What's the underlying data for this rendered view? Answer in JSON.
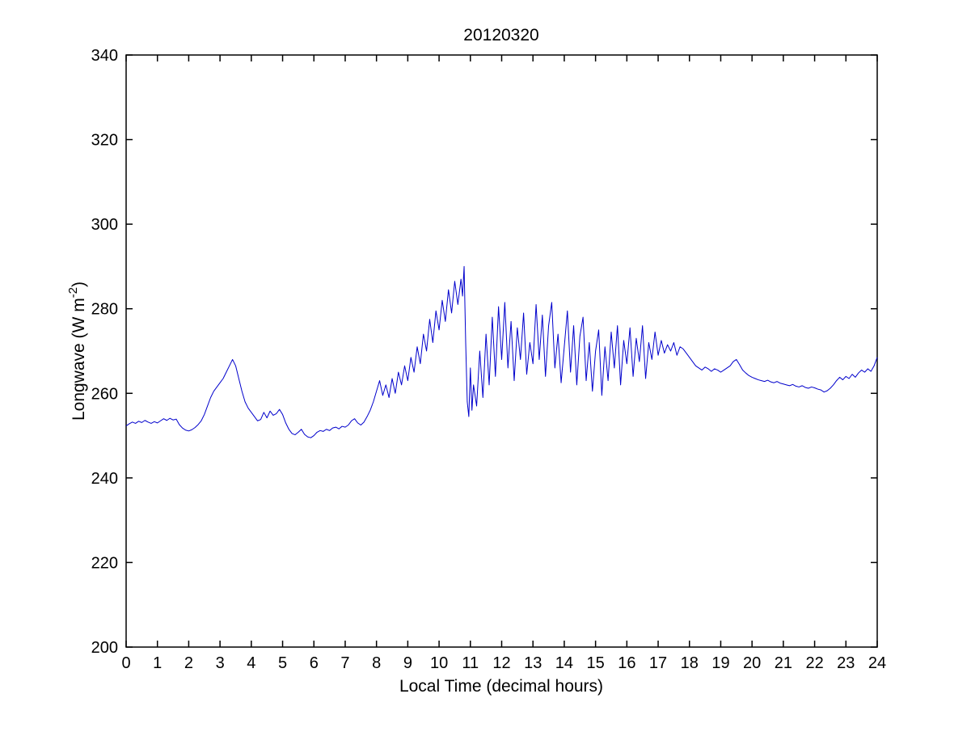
{
  "figure": {
    "title": "20120320",
    "xlabel": "Local Time (decimal hours)",
    "ylabel_prefix": "Longwave (W m",
    "ylabel_superscript": "-2",
    "ylabel_suffix": ")",
    "line_color": "#0000CC",
    "axis_color": "#000000",
    "background": "#FFFFFF"
  },
  "chart_data": {
    "type": "line",
    "title": "20120320",
    "xlabel": "Local Time (decimal hours)",
    "ylabel": "Longwave (W m^-2)",
    "xlim": [
      0,
      24
    ],
    "ylim": [
      200,
      340
    ],
    "xticks": [
      0,
      1,
      2,
      3,
      4,
      5,
      6,
      7,
      8,
      9,
      10,
      11,
      12,
      13,
      14,
      15,
      16,
      17,
      18,
      19,
      20,
      21,
      22,
      23,
      24
    ],
    "yticks": [
      200,
      220,
      240,
      260,
      280,
      300,
      320,
      340
    ],
    "grid": false,
    "legend": null,
    "series": [
      {
        "name": "Longwave",
        "color": "#0000CC",
        "points": [
          [
            0.0,
            252.3
          ],
          [
            0.1,
            252.8
          ],
          [
            0.2,
            253.2
          ],
          [
            0.3,
            252.9
          ],
          [
            0.4,
            253.4
          ],
          [
            0.5,
            253.1
          ],
          [
            0.6,
            253.6
          ],
          [
            0.7,
            253.2
          ],
          [
            0.8,
            252.9
          ],
          [
            0.9,
            253.3
          ],
          [
            1.0,
            253.0
          ],
          [
            1.1,
            253.5
          ],
          [
            1.2,
            254.0
          ],
          [
            1.3,
            253.6
          ],
          [
            1.4,
            254.1
          ],
          [
            1.5,
            253.7
          ],
          [
            1.6,
            253.9
          ],
          [
            1.7,
            252.6
          ],
          [
            1.8,
            251.8
          ],
          [
            1.9,
            251.3
          ],
          [
            2.0,
            251.1
          ],
          [
            2.1,
            251.4
          ],
          [
            2.2,
            251.9
          ],
          [
            2.3,
            252.6
          ],
          [
            2.4,
            253.5
          ],
          [
            2.5,
            255.0
          ],
          [
            2.6,
            257.0
          ],
          [
            2.7,
            259.0
          ],
          [
            2.8,
            260.5
          ],
          [
            2.9,
            261.5
          ],
          [
            3.0,
            262.5
          ],
          [
            3.1,
            263.5
          ],
          [
            3.2,
            265.0
          ],
          [
            3.3,
            266.5
          ],
          [
            3.4,
            268.0
          ],
          [
            3.5,
            266.5
          ],
          [
            3.6,
            263.5
          ],
          [
            3.7,
            260.5
          ],
          [
            3.8,
            258.0
          ],
          [
            3.9,
            256.5
          ],
          [
            4.0,
            255.5
          ],
          [
            4.1,
            254.5
          ],
          [
            4.2,
            253.5
          ],
          [
            4.3,
            253.8
          ],
          [
            4.4,
            255.5
          ],
          [
            4.5,
            254.2
          ],
          [
            4.6,
            255.8
          ],
          [
            4.7,
            254.8
          ],
          [
            4.8,
            255.2
          ],
          [
            4.9,
            256.2
          ],
          [
            5.0,
            255.0
          ],
          [
            5.1,
            253.0
          ],
          [
            5.2,
            251.5
          ],
          [
            5.3,
            250.5
          ],
          [
            5.4,
            250.2
          ],
          [
            5.5,
            250.8
          ],
          [
            5.6,
            251.5
          ],
          [
            5.7,
            250.3
          ],
          [
            5.8,
            249.7
          ],
          [
            5.9,
            249.5
          ],
          [
            6.0,
            250.0
          ],
          [
            6.1,
            250.8
          ],
          [
            6.2,
            251.2
          ],
          [
            6.3,
            251.0
          ],
          [
            6.4,
            251.5
          ],
          [
            6.5,
            251.2
          ],
          [
            6.6,
            251.8
          ],
          [
            6.7,
            252.0
          ],
          [
            6.8,
            251.6
          ],
          [
            6.9,
            252.2
          ],
          [
            7.0,
            252.0
          ],
          [
            7.1,
            252.5
          ],
          [
            7.2,
            253.5
          ],
          [
            7.3,
            254.0
          ],
          [
            7.4,
            253.0
          ],
          [
            7.5,
            252.5
          ],
          [
            7.6,
            253.2
          ],
          [
            7.7,
            254.5
          ],
          [
            7.8,
            256.0
          ],
          [
            7.9,
            258.0
          ],
          [
            8.0,
            260.5
          ],
          [
            8.1,
            263.0
          ],
          [
            8.2,
            259.5
          ],
          [
            8.3,
            262.0
          ],
          [
            8.4,
            259.0
          ],
          [
            8.5,
            263.5
          ],
          [
            8.6,
            260.0
          ],
          [
            8.7,
            265.0
          ],
          [
            8.8,
            262.0
          ],
          [
            8.9,
            266.5
          ],
          [
            9.0,
            263.0
          ],
          [
            9.1,
            268.5
          ],
          [
            9.2,
            265.0
          ],
          [
            9.3,
            271.0
          ],
          [
            9.4,
            267.0
          ],
          [
            9.5,
            274.0
          ],
          [
            9.6,
            270.0
          ],
          [
            9.7,
            277.5
          ],
          [
            9.8,
            272.0
          ],
          [
            9.9,
            279.5
          ],
          [
            10.0,
            275.0
          ],
          [
            10.1,
            282.0
          ],
          [
            10.2,
            277.0
          ],
          [
            10.3,
            284.5
          ],
          [
            10.4,
            279.0
          ],
          [
            10.5,
            286.5
          ],
          [
            10.6,
            281.0
          ],
          [
            10.7,
            287.0
          ],
          [
            10.75,
            283.0
          ],
          [
            10.8,
            290.0
          ],
          [
            10.85,
            272.0
          ],
          [
            10.9,
            258.0
          ],
          [
            10.95,
            254.5
          ],
          [
            11.0,
            266.0
          ],
          [
            11.05,
            256.0
          ],
          [
            11.1,
            262.0
          ],
          [
            11.2,
            257.0
          ],
          [
            11.3,
            270.0
          ],
          [
            11.4,
            259.0
          ],
          [
            11.5,
            274.0
          ],
          [
            11.6,
            262.0
          ],
          [
            11.7,
            278.0
          ],
          [
            11.8,
            264.0
          ],
          [
            11.9,
            280.5
          ],
          [
            12.0,
            268.0
          ],
          [
            12.1,
            281.5
          ],
          [
            12.2,
            266.0
          ],
          [
            12.3,
            277.0
          ],
          [
            12.4,
            263.0
          ],
          [
            12.5,
            275.5
          ],
          [
            12.6,
            268.0
          ],
          [
            12.7,
            279.0
          ],
          [
            12.8,
            264.5
          ],
          [
            12.9,
            272.0
          ],
          [
            13.0,
            267.0
          ],
          [
            13.1,
            281.0
          ],
          [
            13.2,
            268.0
          ],
          [
            13.3,
            278.5
          ],
          [
            13.4,
            264.0
          ],
          [
            13.5,
            276.0
          ],
          [
            13.6,
            281.5
          ],
          [
            13.7,
            266.0
          ],
          [
            13.8,
            274.0
          ],
          [
            13.9,
            262.5
          ],
          [
            14.0,
            271.0
          ],
          [
            14.1,
            279.5
          ],
          [
            14.2,
            265.0
          ],
          [
            14.3,
            276.0
          ],
          [
            14.4,
            262.0
          ],
          [
            14.5,
            273.5
          ],
          [
            14.6,
            278.0
          ],
          [
            14.7,
            263.0
          ],
          [
            14.8,
            272.0
          ],
          [
            14.9,
            260.5
          ],
          [
            15.0,
            270.0
          ],
          [
            15.1,
            275.0
          ],
          [
            15.2,
            259.5
          ],
          [
            15.3,
            271.0
          ],
          [
            15.4,
            263.0
          ],
          [
            15.5,
            274.5
          ],
          [
            15.6,
            266.0
          ],
          [
            15.7,
            276.0
          ],
          [
            15.8,
            262.0
          ],
          [
            15.9,
            272.5
          ],
          [
            16.0,
            267.0
          ],
          [
            16.1,
            275.5
          ],
          [
            16.2,
            264.0
          ],
          [
            16.3,
            273.0
          ],
          [
            16.4,
            267.5
          ],
          [
            16.5,
            276.0
          ],
          [
            16.6,
            263.5
          ],
          [
            16.7,
            272.0
          ],
          [
            16.8,
            268.0
          ],
          [
            16.9,
            274.5
          ],
          [
            17.0,
            269.0
          ],
          [
            17.1,
            272.5
          ],
          [
            17.2,
            269.5
          ],
          [
            17.3,
            271.5
          ],
          [
            17.4,
            270.0
          ],
          [
            17.5,
            272.0
          ],
          [
            17.6,
            269.0
          ],
          [
            17.7,
            271.0
          ],
          [
            17.8,
            270.5
          ],
          [
            17.9,
            269.5
          ],
          [
            18.0,
            268.5
          ],
          [
            18.1,
            267.5
          ],
          [
            18.2,
            266.5
          ],
          [
            18.3,
            266.0
          ],
          [
            18.4,
            265.5
          ],
          [
            18.5,
            266.2
          ],
          [
            18.6,
            265.8
          ],
          [
            18.7,
            265.2
          ],
          [
            18.8,
            265.8
          ],
          [
            18.9,
            265.5
          ],
          [
            19.0,
            265.0
          ],
          [
            19.1,
            265.5
          ],
          [
            19.2,
            266.0
          ],
          [
            19.3,
            266.5
          ],
          [
            19.4,
            267.5
          ],
          [
            19.5,
            268.0
          ],
          [
            19.6,
            266.8
          ],
          [
            19.7,
            265.5
          ],
          [
            19.8,
            264.8
          ],
          [
            19.9,
            264.2
          ],
          [
            20.0,
            263.8
          ],
          [
            20.1,
            263.5
          ],
          [
            20.2,
            263.2
          ],
          [
            20.3,
            263.0
          ],
          [
            20.4,
            262.8
          ],
          [
            20.5,
            263.1
          ],
          [
            20.6,
            262.7
          ],
          [
            20.7,
            262.5
          ],
          [
            20.8,
            262.8
          ],
          [
            20.9,
            262.4
          ],
          [
            21.0,
            262.2
          ],
          [
            21.1,
            262.0
          ],
          [
            21.2,
            261.8
          ],
          [
            21.3,
            262.1
          ],
          [
            21.4,
            261.7
          ],
          [
            21.5,
            261.5
          ],
          [
            21.6,
            261.8
          ],
          [
            21.7,
            261.4
          ],
          [
            21.8,
            261.2
          ],
          [
            21.9,
            261.5
          ],
          [
            22.0,
            261.3
          ],
          [
            22.1,
            261.0
          ],
          [
            22.2,
            260.8
          ],
          [
            22.3,
            260.3
          ],
          [
            22.4,
            260.6
          ],
          [
            22.5,
            261.2
          ],
          [
            22.6,
            262.0
          ],
          [
            22.7,
            263.0
          ],
          [
            22.8,
            263.8
          ],
          [
            22.9,
            263.2
          ],
          [
            23.0,
            264.0
          ],
          [
            23.1,
            263.5
          ],
          [
            23.2,
            264.5
          ],
          [
            23.3,
            263.8
          ],
          [
            23.4,
            264.8
          ],
          [
            23.5,
            265.5
          ],
          [
            23.6,
            265.0
          ],
          [
            23.7,
            265.8
          ],
          [
            23.8,
            265.2
          ],
          [
            23.9,
            266.5
          ],
          [
            24.0,
            268.5
          ]
        ]
      }
    ]
  }
}
